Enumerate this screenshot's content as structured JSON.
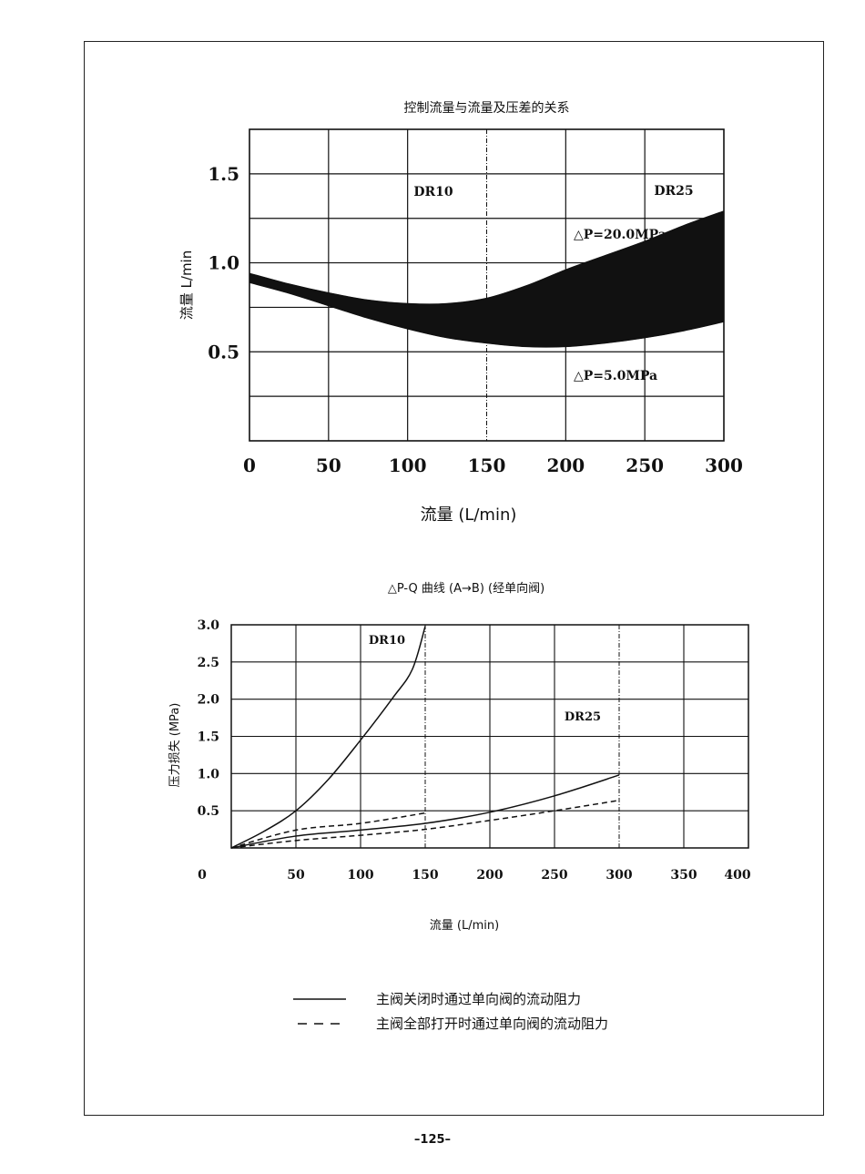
{
  "chart_data": [
    {
      "type": "area",
      "title": "控制流量与流量及压差的关系",
      "xlabel": "流量 (L/min)",
      "ylabel": "流量 L/min",
      "xlim": [
        0,
        300
      ],
      "ylim": [
        0,
        1.75
      ],
      "x_ticks": [
        "0",
        "50",
        "100",
        "150",
        "200",
        "250",
        "300"
      ],
      "y_ticks": [
        "0.5",
        "1.0",
        "1.5"
      ],
      "annotations": [
        "DR10",
        "DR25",
        "△P=20.0MPa",
        "△P=5.0MPa"
      ],
      "grid": true,
      "series": [
        {
          "name": "△P=20.0MPa",
          "x": [
            0,
            25,
            50,
            75,
            100,
            125,
            150,
            175,
            200,
            225,
            250,
            275,
            300
          ],
          "values": [
            0.94,
            0.88,
            0.83,
            0.79,
            0.77,
            0.77,
            0.8,
            0.87,
            0.96,
            1.04,
            1.12,
            1.21,
            1.29
          ]
        },
        {
          "name": "△P=5.0MPa",
          "x": [
            0,
            25,
            50,
            75,
            100,
            125,
            150,
            175,
            200,
            225,
            250,
            275,
            300
          ],
          "values": [
            0.89,
            0.83,
            0.76,
            0.69,
            0.63,
            0.58,
            0.55,
            0.53,
            0.53,
            0.55,
            0.58,
            0.62,
            0.67
          ]
        }
      ]
    },
    {
      "type": "line",
      "title": "△P-Q 曲线 (A→B) (经单向阀)",
      "xlabel": "流量 (L/min)",
      "ylabel": "压力损失 (MPa)",
      "xlim": [
        0,
        400
      ],
      "ylim": [
        0,
        3.0
      ],
      "x_ticks": [
        "0",
        "50",
        "100",
        "150",
        "200",
        "250",
        "300",
        "350",
        "400"
      ],
      "y_ticks": [
        "0.5",
        "1.0",
        "1.5",
        "2.0",
        "2.5",
        "3.0"
      ],
      "annotations": [
        "DR10",
        "DR25"
      ],
      "grid": true,
      "series": [
        {
          "x": [
            0,
            25,
            50,
            75,
            100,
            125,
            140,
            150
          ],
          "values": [
            0,
            0.22,
            0.5,
            0.92,
            1.45,
            2.02,
            2.4,
            2.98
          ]
        },
        {
          "x": [
            0,
            50,
            100,
            150
          ],
          "values": [
            0,
            0.24,
            0.33,
            0.47
          ]
        },
        {
          "x": [
            0,
            50,
            100,
            150,
            200,
            250,
            300
          ],
          "values": [
            0,
            0.16,
            0.24,
            0.33,
            0.48,
            0.7,
            0.98
          ]
        },
        {
          "x": [
            0,
            50,
            100,
            150,
            200,
            250,
            300
          ],
          "values": [
            0,
            0.1,
            0.17,
            0.25,
            0.37,
            0.5,
            0.64
          ]
        }
      ]
    }
  ],
  "legend": {
    "solid_label": "主阀关闭时通过单向阀的流动阻力",
    "dashed_label": "主阀全部打开时通过单向阀的流动阻力"
  },
  "page_number": "–125–"
}
